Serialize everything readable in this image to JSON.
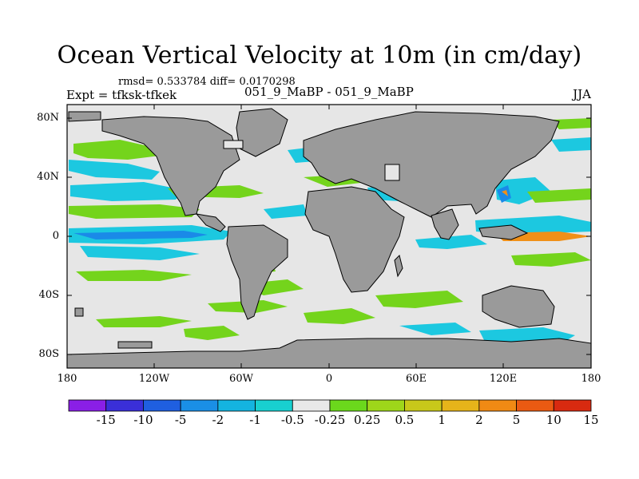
{
  "title": "Ocean Vertical Velocity at 10m (in cm/day)",
  "stats": "rmsd= 0.533784 diff= 0.0170298",
  "runs": "051_9_MaBP - 051_9_MaBP",
  "expt": "Expt = tfksk-tfkek",
  "season": "JJA",
  "lat_ticks": [
    "80N",
    "40N",
    "0",
    "40S",
    "80S"
  ],
  "lon_ticks": [
    "180",
    "120W",
    "60W",
    "0",
    "60E",
    "120E",
    "180"
  ],
  "colorbar": {
    "labels": [
      "-15",
      "-10",
      "-5",
      "-2",
      "-1",
      "-0.5",
      "-0.25",
      "0.25",
      "0.5",
      "1",
      "2",
      "5",
      "10",
      "15"
    ],
    "colors": [
      "#8a1fe6",
      "#3a2fd8",
      "#1f5fe0",
      "#1a8fe6",
      "#14b4e0",
      "#18d0d0",
      "#e8e8e8",
      "#6bd81c",
      "#9ed61a",
      "#c8c81a",
      "#e6b41a",
      "#f08a14",
      "#ea5a12",
      "#d82a10"
    ]
  },
  "colors": {
    "land": "#9a9a9a",
    "ocean_neutral": "#e6e6e6",
    "green": "#74d41c",
    "cyan": "#1cc8e0",
    "blue": "#1a8ae8",
    "orange": "#f09018",
    "yellow": "#cccc22"
  }
}
